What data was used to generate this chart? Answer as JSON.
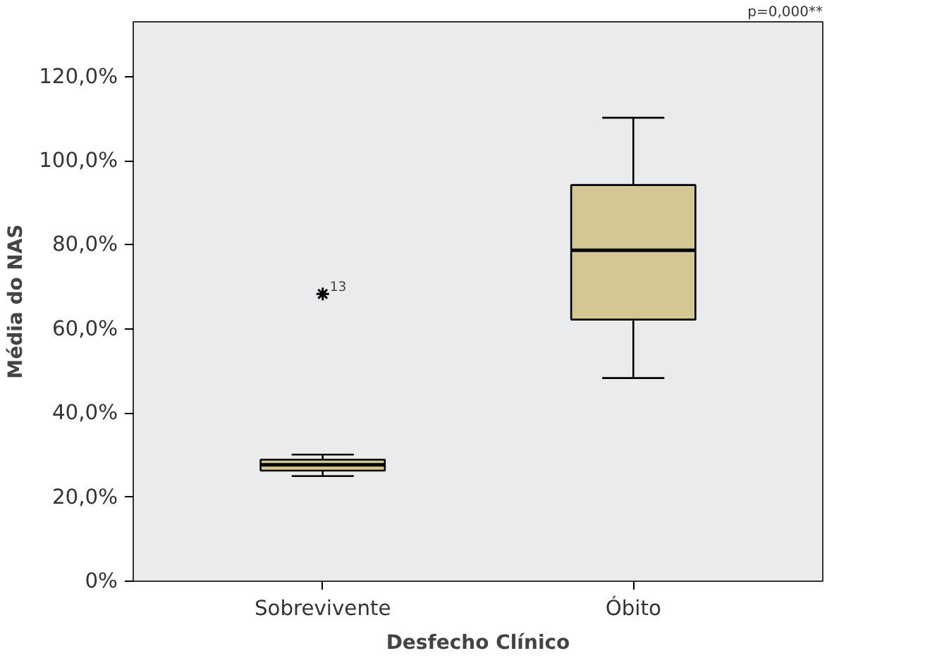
{
  "chart_data": {
    "type": "box",
    "categories": [
      "Sobrevivente",
      "Óbito"
    ],
    "xlabel": "Desfecho Clínico",
    "ylabel": "Média do NAS",
    "color": "#d3c894",
    "boxes": [
      {
        "low": 25.0,
        "q1": 26.3,
        "median": 27.7,
        "q3": 28.9,
        "high": 30.1,
        "outliers": [
          68.3
        ]
      },
      {
        "low": 48.3,
        "q1": 62.2,
        "median": 78.7,
        "q3": 94.2,
        "high": 110.2
      }
    ],
    "ylim": [
      0,
      133
    ],
    "yticks": [
      {
        "value": 0,
        "label": "0%"
      },
      {
        "value": 20,
        "label": "20,0%"
      },
      {
        "value": 40,
        "label": "40,0%"
      },
      {
        "value": 60,
        "label": "60,0%"
      },
      {
        "value": 80,
        "label": "80,0%"
      },
      {
        "value": 100,
        "label": "100,0%"
      },
      {
        "value": 120,
        "label": "120,0%"
      }
    ],
    "grid": false,
    "marker": "star",
    "annotations": [
      "13",
      "p=0,000**"
    ]
  }
}
